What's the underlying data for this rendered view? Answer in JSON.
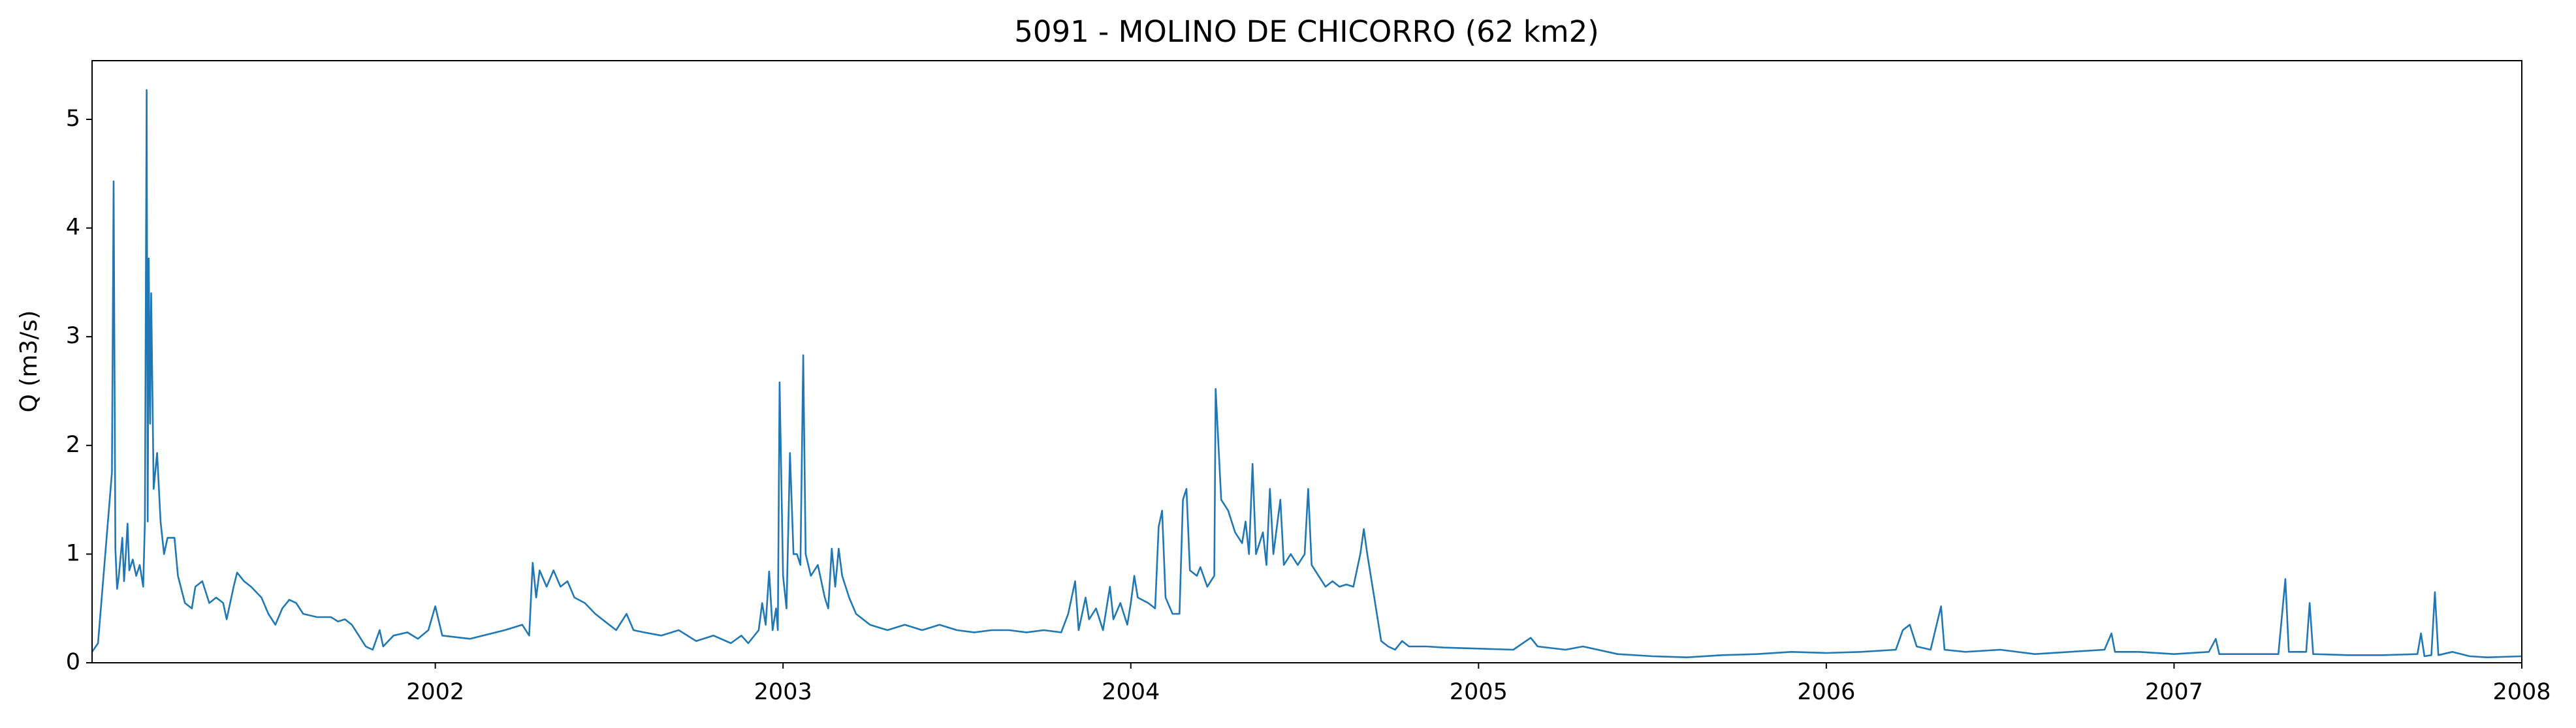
{
  "chart_data": {
    "type": "line",
    "title": "5091 - MOLINO DE CHICORRO (62 km2)",
    "y_label": "Q (m3/s)",
    "color": "#1f77b4",
    "xlim": [
      2001.013,
      2008
    ],
    "ylim": [
      0,
      5.54
    ],
    "xticks": [
      2002,
      2003,
      2004,
      2005,
      2006,
      2007,
      2008
    ],
    "yticks": [
      0,
      1,
      2,
      3,
      4,
      5
    ],
    "grid": false,
    "x": [
      2001.013,
      2001.03,
      2001.07,
      2001.075,
      2001.08,
      2001.085,
      2001.09,
      2001.1,
      2001.105,
      2001.11,
      2001.115,
      2001.12,
      2001.13,
      2001.14,
      2001.15,
      2001.16,
      2001.165,
      2001.17,
      2001.173,
      2001.176,
      2001.18,
      2001.183,
      2001.19,
      2001.2,
      2001.21,
      2001.22,
      2001.23,
      2001.25,
      2001.26,
      2001.28,
      2001.3,
      2001.31,
      2001.33,
      2001.35,
      2001.37,
      2001.39,
      2001.4,
      2001.42,
      2001.43,
      2001.45,
      2001.47,
      2001.5,
      2001.52,
      2001.54,
      2001.56,
      2001.58,
      2001.6,
      2001.62,
      2001.66,
      2001.7,
      2001.72,
      2001.74,
      2001.76,
      2001.78,
      2001.8,
      2001.82,
      2001.84,
      2001.85,
      2001.88,
      2001.92,
      2001.95,
      2001.98,
      2002.0,
      2002.02,
      2002.1,
      2002.2,
      2002.25,
      2002.27,
      2002.28,
      2002.29,
      2002.3,
      2002.32,
      2002.34,
      2002.36,
      2002.38,
      2002.4,
      2002.43,
      2002.46,
      2002.5,
      2002.52,
      2002.55,
      2002.57,
      2002.6,
      2002.65,
      2002.7,
      2002.75,
      2002.8,
      2002.85,
      2002.88,
      2002.9,
      2002.93,
      2002.94,
      2002.95,
      2002.96,
      2002.97,
      2002.98,
      2002.985,
      2002.99,
      2003.0,
      2003.01,
      2003.02,
      2003.03,
      2003.04,
      2003.05,
      2003.058,
      2003.065,
      2003.08,
      2003.1,
      2003.12,
      2003.13,
      2003.14,
      2003.15,
      2003.16,
      2003.17,
      2003.19,
      2003.21,
      2003.25,
      2003.3,
      2003.35,
      2003.4,
      2003.45,
      2003.5,
      2003.55,
      2003.6,
      2003.65,
      2003.7,
      2003.75,
      2003.8,
      2003.82,
      2003.84,
      2003.85,
      2003.87,
      2003.88,
      2003.9,
      2003.92,
      2003.94,
      2003.95,
      2003.97,
      2003.99,
      2004.0,
      2004.01,
      2004.02,
      2004.05,
      2004.07,
      2004.08,
      2004.09,
      2004.1,
      2004.12,
      2004.14,
      2004.15,
      2004.16,
      2004.17,
      2004.19,
      2004.2,
      2004.22,
      2004.24,
      2004.244,
      2004.26,
      2004.28,
      2004.3,
      2004.32,
      2004.33,
      2004.34,
      2004.35,
      2004.36,
      2004.38,
      2004.39,
      2004.4,
      2004.41,
      2004.43,
      2004.44,
      2004.46,
      2004.48,
      2004.5,
      2004.51,
      2004.52,
      2004.54,
      2004.56,
      2004.58,
      2004.6,
      2004.62,
      2004.64,
      2004.66,
      2004.67,
      2004.68,
      2004.7,
      2004.72,
      2004.74,
      2004.76,
      2004.78,
      2004.8,
      2004.85,
      2004.9,
      2005.0,
      2005.1,
      2005.15,
      2005.17,
      2005.25,
      2005.3,
      2005.4,
      2005.5,
      2005.6,
      2005.7,
      2005.8,
      2005.9,
      2006.0,
      2006.1,
      2006.2,
      2006.22,
      2006.24,
      2006.26,
      2006.3,
      2006.33,
      2006.34,
      2006.4,
      2006.5,
      2006.6,
      2006.7,
      2006.8,
      2006.82,
      2006.83,
      2006.9,
      2007.0,
      2007.1,
      2007.12,
      2007.13,
      2007.2,
      2007.3,
      2007.32,
      2007.33,
      2007.38,
      2007.39,
      2007.4,
      2007.5,
      2007.6,
      2007.7,
      2007.71,
      2007.72,
      2007.74,
      2007.75,
      2007.76,
      2007.8,
      2007.85,
      2007.9,
      2008.0
    ],
    "values": [
      0.1,
      0.18,
      1.75,
      4.43,
      1.05,
      0.68,
      0.8,
      1.15,
      0.75,
      1.0,
      1.28,
      0.85,
      0.95,
      0.8,
      0.9,
      0.7,
      1.3,
      5.27,
      1.3,
      3.72,
      2.2,
      3.4,
      1.6,
      1.93,
      1.3,
      1.0,
      1.15,
      1.15,
      0.8,
      0.55,
      0.5,
      0.7,
      0.75,
      0.55,
      0.6,
      0.55,
      0.4,
      0.7,
      0.83,
      0.75,
      0.7,
      0.6,
      0.45,
      0.35,
      0.5,
      0.58,
      0.55,
      0.45,
      0.42,
      0.42,
      0.38,
      0.4,
      0.35,
      0.25,
      0.15,
      0.12,
      0.3,
      0.15,
      0.25,
      0.28,
      0.22,
      0.3,
      0.52,
      0.25,
      0.22,
      0.3,
      0.35,
      0.25,
      0.92,
      0.6,
      0.85,
      0.7,
      0.85,
      0.7,
      0.75,
      0.6,
      0.55,
      0.45,
      0.35,
      0.3,
      0.45,
      0.3,
      0.28,
      0.25,
      0.3,
      0.2,
      0.25,
      0.18,
      0.25,
      0.18,
      0.3,
      0.55,
      0.35,
      0.84,
      0.3,
      0.5,
      0.3,
      2.58,
      0.8,
      0.5,
      1.93,
      1.0,
      1.0,
      0.9,
      2.83,
      1.0,
      0.8,
      0.9,
      0.6,
      0.5,
      1.05,
      0.7,
      1.05,
      0.8,
      0.6,
      0.45,
      0.35,
      0.3,
      0.35,
      0.3,
      0.35,
      0.3,
      0.28,
      0.3,
      0.3,
      0.28,
      0.3,
      0.28,
      0.45,
      0.75,
      0.3,
      0.6,
      0.4,
      0.5,
      0.3,
      0.7,
      0.4,
      0.55,
      0.35,
      0.55,
      0.8,
      0.6,
      0.55,
      0.5,
      1.25,
      1.4,
      0.6,
      0.45,
      0.45,
      1.5,
      1.6,
      0.85,
      0.8,
      0.88,
      0.7,
      0.8,
      2.52,
      1.5,
      1.4,
      1.2,
      1.1,
      1.3,
      1.0,
      1.83,
      1.0,
      1.2,
      0.9,
      1.6,
      1.0,
      1.5,
      0.9,
      1.0,
      0.9,
      1.0,
      1.6,
      0.9,
      0.8,
      0.7,
      0.75,
      0.7,
      0.72,
      0.7,
      1.0,
      1.23,
      1.0,
      0.6,
      0.2,
      0.15,
      0.12,
      0.2,
      0.15,
      0.15,
      0.14,
      0.13,
      0.12,
      0.23,
      0.15,
      0.12,
      0.15,
      0.08,
      0.06,
      0.05,
      0.07,
      0.08,
      0.1,
      0.09,
      0.1,
      0.12,
      0.3,
      0.35,
      0.15,
      0.12,
      0.52,
      0.12,
      0.1,
      0.12,
      0.08,
      0.1,
      0.12,
      0.27,
      0.1,
      0.1,
      0.08,
      0.1,
      0.22,
      0.08,
      0.08,
      0.08,
      0.77,
      0.1,
      0.1,
      0.55,
      0.08,
      0.07,
      0.07,
      0.08,
      0.27,
      0.06,
      0.07,
      0.65,
      0.07,
      0.1,
      0.06,
      0.05,
      0.06
    ]
  }
}
